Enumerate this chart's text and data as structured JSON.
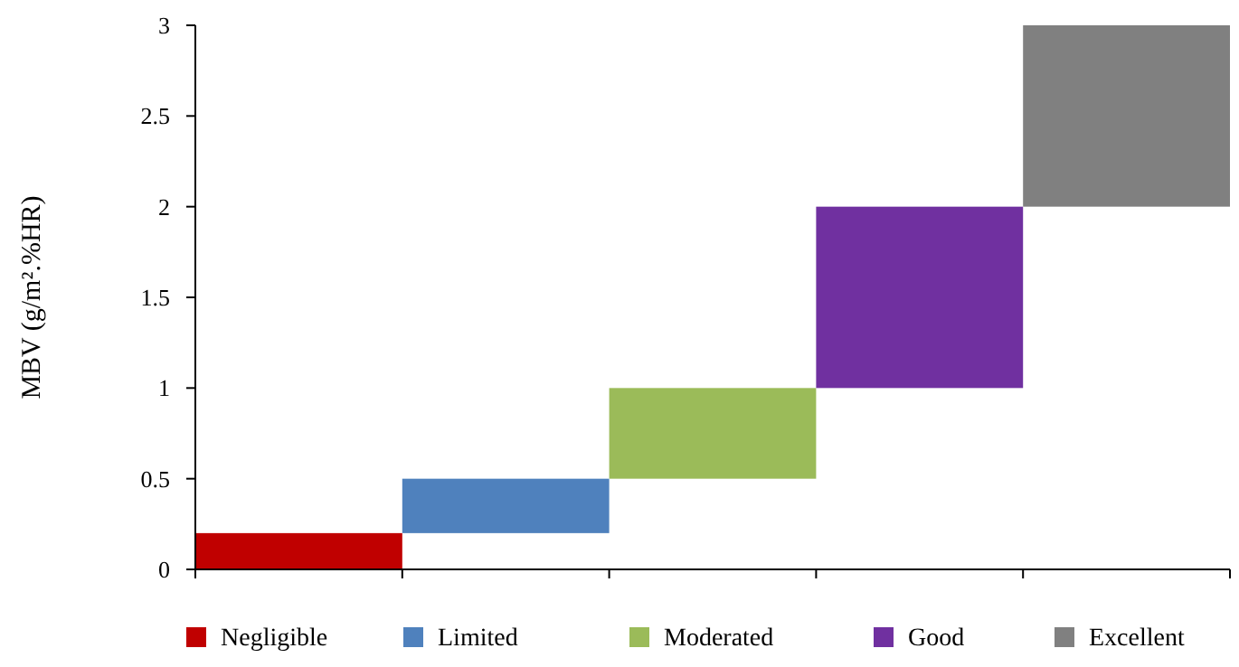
{
  "chart_data": {
    "type": "bar",
    "ylabel": "MBV (g/m².%HR)",
    "categories": [
      null,
      null,
      null,
      null,
      null
    ],
    "series": [
      {
        "name": "Negligible",
        "color": "#c00000",
        "values": [
          0.2,
          null,
          null,
          null,
          null
        ],
        "base": [
          0,
          null,
          null,
          null,
          null
        ]
      },
      {
        "name": "Limited",
        "color": "#4f81bd",
        "values": [
          null,
          0.3,
          null,
          null,
          null
        ],
        "base": [
          null,
          0.2,
          null,
          null,
          null
        ]
      },
      {
        "name": "Moderated",
        "color": "#9bbb59",
        "values": [
          null,
          null,
          0.5,
          null,
          null
        ],
        "base": [
          null,
          null,
          0.5,
          null,
          null
        ]
      },
      {
        "name": "Good",
        "color": "#7030a0",
        "values": [
          null,
          null,
          null,
          1,
          null
        ],
        "base": [
          null,
          null,
          null,
          1,
          null
        ]
      },
      {
        "name": "Excellent",
        "color": "#808080",
        "values": [
          null,
          null,
          null,
          null,
          1
        ],
        "base": [
          null,
          null,
          null,
          null,
          2
        ]
      }
    ],
    "ylim": [
      0,
      3
    ],
    "yticks": [
      0,
      0.5,
      1,
      1.5,
      2,
      2.5,
      3
    ],
    "grid": false,
    "legend": "bottom"
  }
}
